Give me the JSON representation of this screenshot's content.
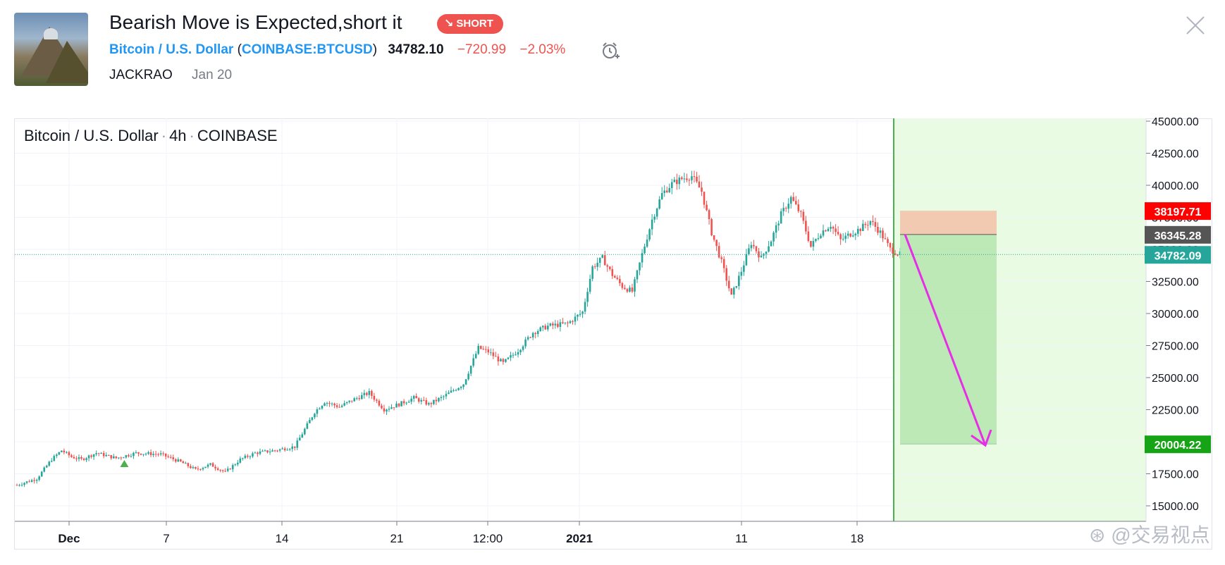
{
  "idea": {
    "title": "Bearish Move is Expected,short it",
    "badge": "SHORT",
    "symbol_name": "Bitcoin / U.S. Dollar",
    "symbol_code": "COINBASE:BTCUSD",
    "price": "34782.10",
    "change": "−720.99",
    "change_pct": "−2.03%",
    "author": "JACKRAO",
    "date": "Jan 20"
  },
  "legend": {
    "symbol": "Bitcoin / U.S. Dollar",
    "interval": "4h",
    "exchange": "COINBASE"
  },
  "watermark": "@交易视点",
  "colors": {
    "up": "#26a69a",
    "down": "#ef5350",
    "stop_zone": "#f2c1a8",
    "target_zone": "#b7e7b0",
    "future_zone": "#eafbe4",
    "arrow": "#e62ee6",
    "link": "#2196f3"
  },
  "chart_data": {
    "type": "candlestick",
    "interval": "4h",
    "ylim": [
      14000,
      45500
    ],
    "y_ticks": [
      "45000.00",
      "42500.00",
      "40000.00",
      "37500.00",
      "35000.00",
      "32500.00",
      "30000.00",
      "27500.00",
      "25000.00",
      "22500.00",
      "20000.00",
      "17500.00",
      "15000.00"
    ],
    "x_ticks": [
      {
        "label": "Dec",
        "bold": true
      },
      {
        "label": "7",
        "bold": false
      },
      {
        "label": "14",
        "bold": false
      },
      {
        "label": "21",
        "bold": false
      },
      {
        "label": "12:00",
        "bold": false
      },
      {
        "label": "2021",
        "bold": true
      },
      {
        "label": "11",
        "bold": false
      },
      {
        "label": "18",
        "bold": false
      }
    ],
    "path_points": [
      [
        0,
        16800
      ],
      [
        8,
        17300
      ],
      [
        14,
        18800
      ],
      [
        18,
        19500
      ],
      [
        22,
        19000
      ],
      [
        26,
        18800
      ],
      [
        32,
        19300
      ],
      [
        40,
        18900
      ],
      [
        48,
        19300
      ],
      [
        58,
        19200
      ],
      [
        66,
        18600
      ],
      [
        72,
        18000
      ],
      [
        78,
        18400
      ],
      [
        84,
        17800
      ],
      [
        90,
        18800
      ],
      [
        96,
        19300
      ],
      [
        104,
        19500
      ],
      [
        112,
        19800
      ],
      [
        120,
        22500
      ],
      [
        124,
        23300
      ],
      [
        130,
        22900
      ],
      [
        136,
        23500
      ],
      [
        142,
        24000
      ],
      [
        148,
        22700
      ],
      [
        154,
        23100
      ],
      [
        160,
        23600
      ],
      [
        166,
        23100
      ],
      [
        172,
        23700
      ],
      [
        180,
        24700
      ],
      [
        186,
        27500
      ],
      [
        190,
        27200
      ],
      [
        196,
        26300
      ],
      [
        202,
        27300
      ],
      [
        208,
        28700
      ],
      [
        214,
        29200
      ],
      [
        222,
        29400
      ],
      [
        228,
        30300
      ],
      [
        232,
        33800
      ],
      [
        236,
        34500
      ],
      [
        240,
        33200
      ],
      [
        244,
        32300
      ],
      [
        248,
        31900
      ],
      [
        252,
        34800
      ],
      [
        256,
        37500
      ],
      [
        260,
        39500
      ],
      [
        264,
        40300
      ],
      [
        268,
        40700
      ],
      [
        272,
        40900
      ],
      [
        276,
        39700
      ],
      [
        280,
        36500
      ],
      [
        284,
        34200
      ],
      [
        288,
        31500
      ],
      [
        292,
        33500
      ],
      [
        296,
        35700
      ],
      [
        300,
        34500
      ],
      [
        304,
        35900
      ],
      [
        308,
        37900
      ],
      [
        312,
        39200
      ],
      [
        316,
        37900
      ],
      [
        320,
        35400
      ],
      [
        324,
        36500
      ],
      [
        328,
        37100
      ],
      [
        332,
        35900
      ],
      [
        336,
        36400
      ],
      [
        340,
        36800
      ],
      [
        344,
        37400
      ],
      [
        348,
        36500
      ],
      [
        352,
        35200
      ],
      [
        356,
        34782
      ]
    ],
    "marker_up_index": 22,
    "last_price": 34782.09,
    "price_labels": [
      {
        "value": 38197.71,
        "text": "38197.71",
        "bg": "#ff0000",
        "name": "stop-loss-label"
      },
      {
        "value": 36345.28,
        "text": "36345.28",
        "bg": "#555555",
        "name": "entry-price-label"
      },
      {
        "value": 34782.09,
        "text": "34782.09",
        "bg": "#26a69a",
        "name": "last-price-label"
      },
      {
        "value": 20004.22,
        "text": "20004.22",
        "bg": "#16a316",
        "name": "target-price-label"
      }
    ],
    "position": {
      "side": "short",
      "entry": 36345.28,
      "stop": 38197.71,
      "target": 20004.22
    },
    "arrow": {
      "from": 36345.28,
      "to": 19900
    }
  }
}
